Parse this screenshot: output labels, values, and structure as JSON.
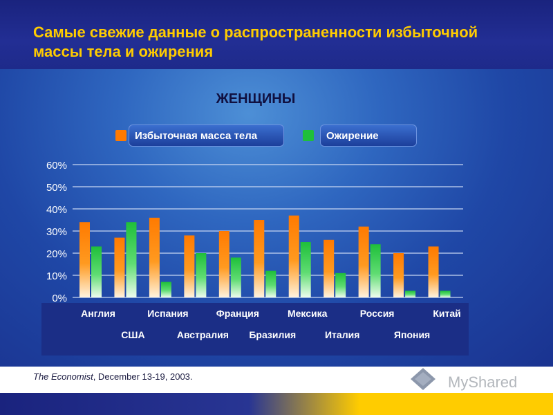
{
  "title": "Самые свежие данные о распространенности избыточной массы тела и ожирения",
  "source_italic": "The Economist",
  "source_rest": ", December 13-19, 2003.",
  "watermark": "MyShared",
  "colors": {
    "overweight": "#ff7a00",
    "obesity": "#1fbf3a",
    "title": "#ffcc00"
  },
  "chart_data": {
    "type": "bar",
    "title": "ЖЕНЩИНЫ",
    "categories": [
      "Англия",
      "США",
      "Испания",
      "Австралия",
      "Франция",
      "Бразилия",
      "Мексика",
      "Италия",
      "Россия",
      "Япония",
      "Китай"
    ],
    "series": [
      {
        "name": "Избыточная масса тела",
        "values": [
          34,
          27,
          36,
          28,
          30,
          35,
          37,
          26,
          32,
          20,
          23
        ]
      },
      {
        "name": "Ожирение",
        "values": [
          23,
          34,
          7,
          20,
          18,
          12,
          25,
          11,
          24,
          3,
          3
        ]
      }
    ],
    "ylim": [
      0,
      60
    ],
    "yticks": [
      "0%",
      "10%",
      "20%",
      "30%",
      "40%",
      "50%",
      "60%"
    ],
    "legend": "top",
    "grid": true
  }
}
